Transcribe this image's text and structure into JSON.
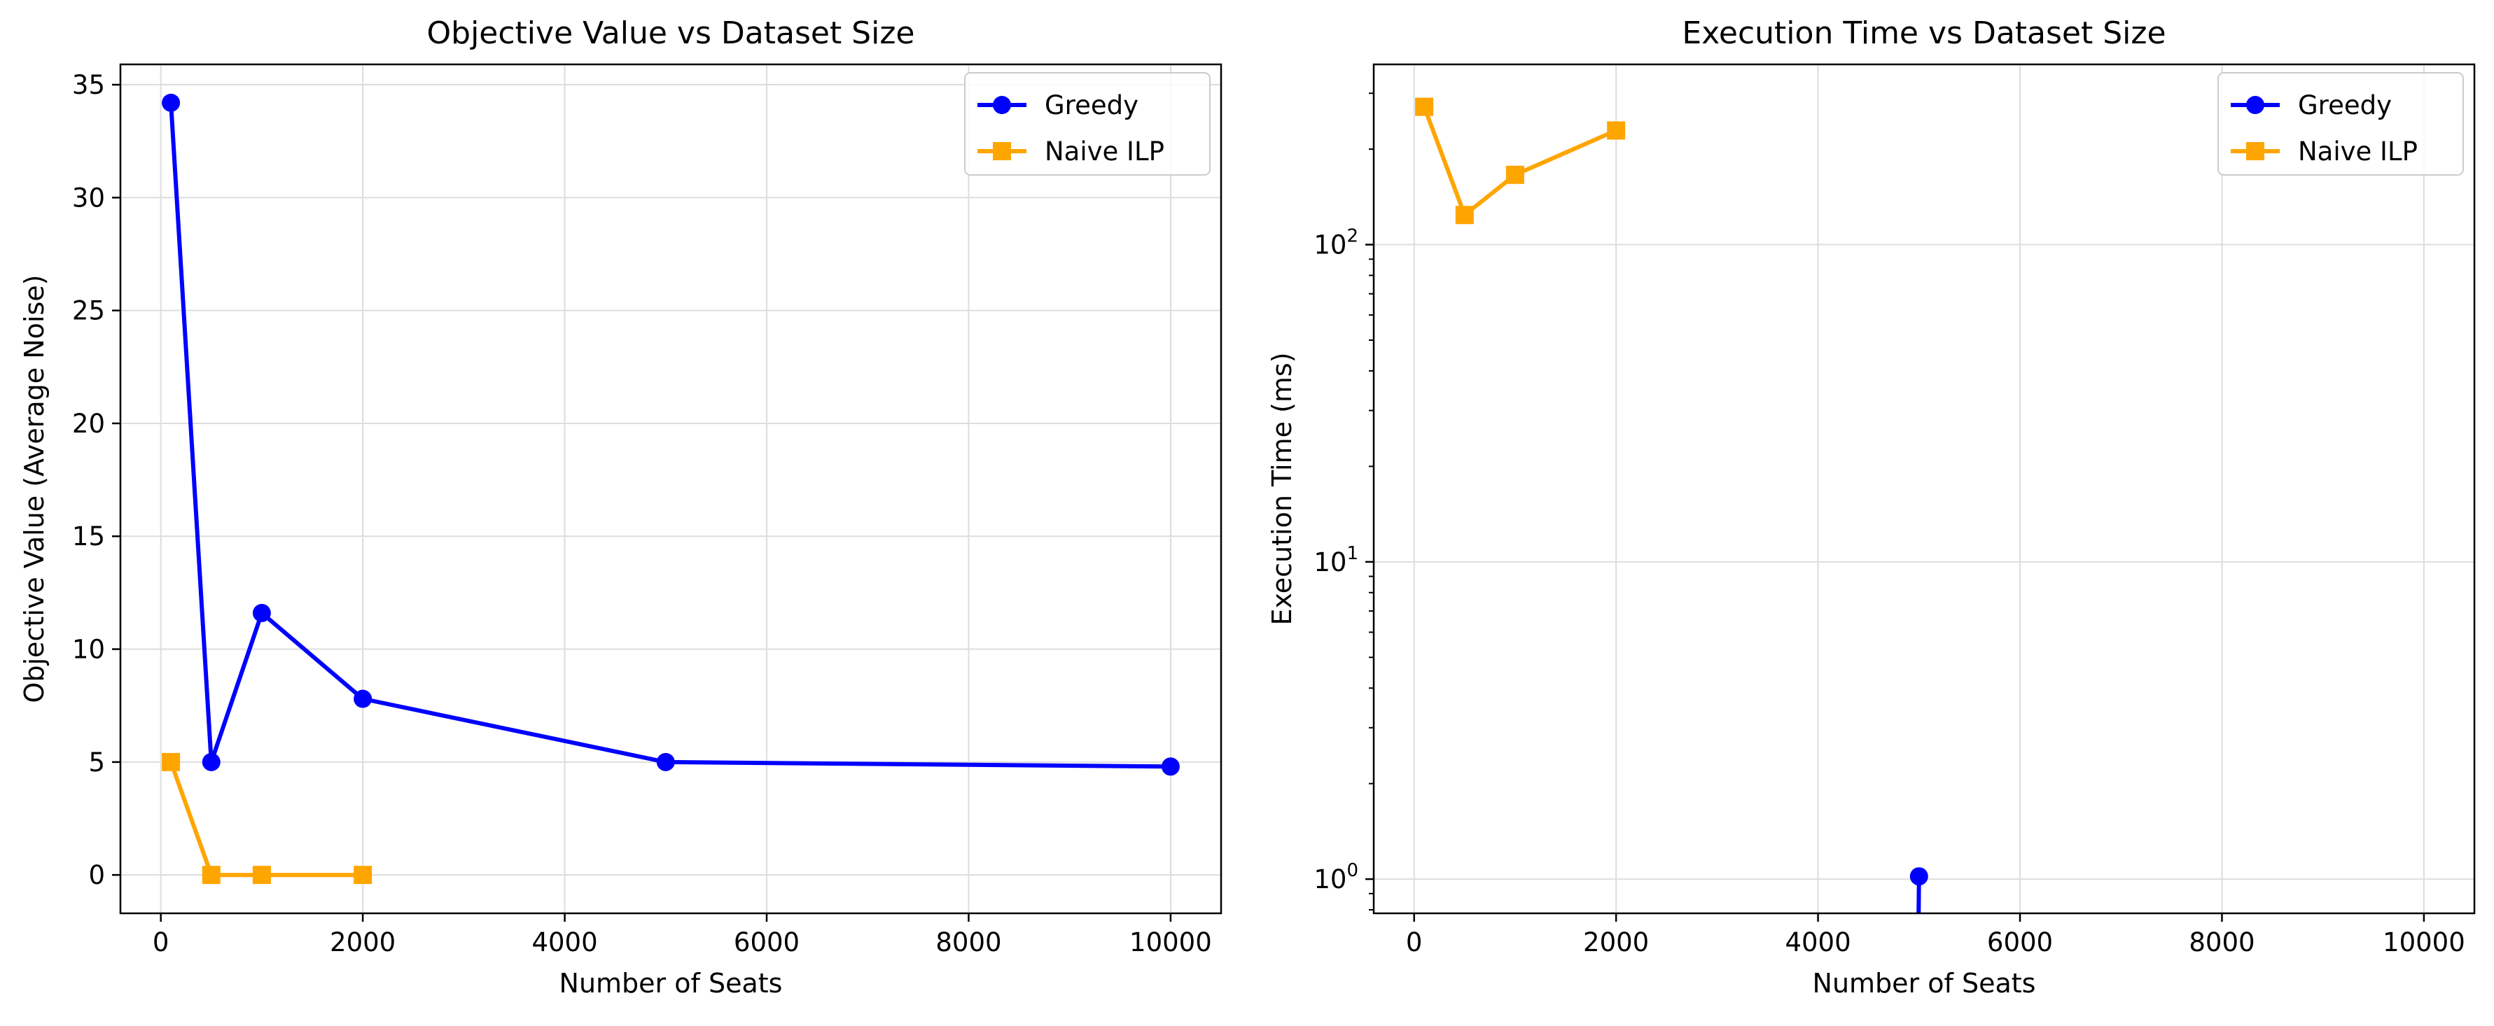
{
  "chart_data": [
    {
      "type": "line",
      "title": "Objective Value vs Dataset Size",
      "xlabel": "Number of Seats",
      "ylabel": "Objective Value (Average Noise)",
      "xlim": [
        -400,
        10500
      ],
      "ylim": [
        -1.7,
        35.9
      ],
      "xticks": [
        0,
        2000,
        4000,
        6000,
        8000,
        10000
      ],
      "xtick_labels": [
        "0",
        "2000",
        "4000",
        "6000",
        "8000",
        "10000"
      ],
      "yticks": [
        0,
        5,
        10,
        15,
        20,
        25,
        30,
        35
      ],
      "ytick_labels": [
        "0",
        "5",
        "10",
        "15",
        "20",
        "25",
        "30",
        "35"
      ],
      "yscale": "linear",
      "grid": true,
      "legend": "top-right",
      "series": [
        {
          "name": "Greedy",
          "color": "#0000ff",
          "marker": "circle",
          "x": [
            100,
            500,
            1000,
            2000,
            5000,
            10000
          ],
          "y": [
            34.2,
            5.0,
            11.6,
            7.8,
            5.0,
            4.8
          ]
        },
        {
          "name": "Naive ILP",
          "color": "#ffa500",
          "marker": "square",
          "x": [
            100,
            500,
            1000,
            2000
          ],
          "y": [
            5.0,
            0.0,
            0.0,
            0.0
          ]
        }
      ]
    },
    {
      "type": "line",
      "title": "Execution Time vs Dataset Size",
      "xlabel": "Number of Seats",
      "ylabel": "Execution Time (ms)",
      "xlim": [
        -400,
        10500
      ],
      "ylim": [
        0.78,
        370
      ],
      "xticks": [
        0,
        2000,
        4000,
        6000,
        8000,
        10000
      ],
      "xtick_labels": [
        "0",
        "2000",
        "4000",
        "6000",
        "8000",
        "10000"
      ],
      "yticks": [
        1,
        10,
        100
      ],
      "ytick_labels": [
        {
          "base": "10",
          "exp": "0"
        },
        {
          "base": "10",
          "exp": "1"
        },
        {
          "base": "10",
          "exp": "2"
        }
      ],
      "yscale": "log",
      "grid": true,
      "legend": "top-right",
      "series": [
        {
          "name": "Greedy",
          "color": "#0000ff",
          "marker": "circle",
          "x": [
            4990,
            5000
          ],
          "y": [
            0.5,
            1.02
          ]
        },
        {
          "name": "Naive ILP",
          "color": "#ffa500",
          "marker": "square",
          "x": [
            100,
            500,
            1000,
            2000
          ],
          "y": [
            272,
            124,
            166,
            229
          ]
        }
      ]
    }
  ]
}
